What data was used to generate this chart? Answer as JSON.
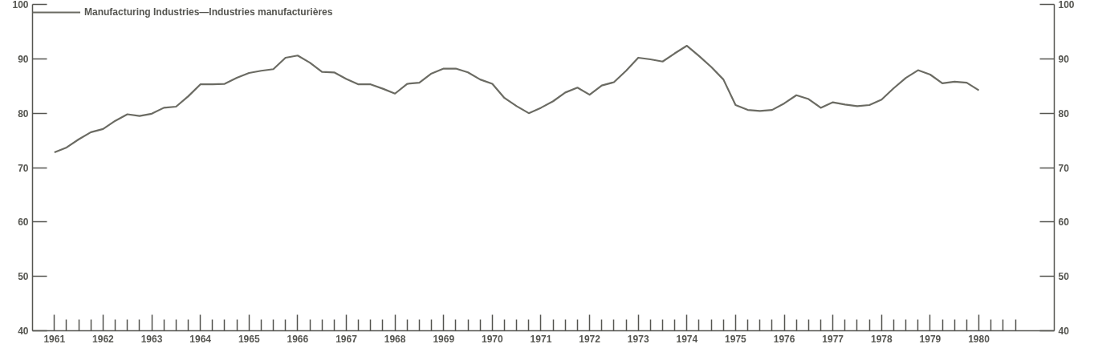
{
  "chart_data": {
    "type": "line",
    "legend": "top left",
    "grid": false,
    "marker": "none",
    "line_style": "solid",
    "x": [
      1961,
      1961.25,
      1961.5,
      1961.75,
      1962,
      1962.25,
      1962.5,
      1962.75,
      1963,
      1963.25,
      1963.5,
      1963.75,
      1964,
      1964.25,
      1964.5,
      1964.75,
      1965,
      1965.25,
      1965.5,
      1965.75,
      1966,
      1966.25,
      1966.5,
      1966.75,
      1967,
      1967.25,
      1967.5,
      1967.75,
      1968,
      1968.25,
      1968.5,
      1968.75,
      1969,
      1969.25,
      1969.5,
      1969.75,
      1970,
      1970.25,
      1970.5,
      1970.75,
      1971,
      1971.25,
      1971.5,
      1971.75,
      1972,
      1972.25,
      1972.5,
      1972.75,
      1973,
      1973.25,
      1973.5,
      1973.75,
      1974,
      1974.25,
      1974.5,
      1974.75,
      1975,
      1975.25,
      1975.5,
      1975.75,
      1976,
      1976.25,
      1976.5,
      1976.75,
      1977,
      1977.25,
      1977.5,
      1977.75,
      1978,
      1978.25,
      1978.5,
      1978.75,
      1979,
      1979.25,
      1979.5,
      1979.75,
      1980
    ],
    "series": [
      {
        "name": "Manufacturing Industries—Industries manufacturières",
        "color": "#6b6b63",
        "values": [
          72.8,
          73.7,
          75.2,
          76.5,
          77.1,
          78.6,
          79.8,
          79.5,
          79.9,
          81.0,
          81.2,
          83.1,
          85.3,
          85.3,
          85.4,
          86.5,
          87.4,
          87.8,
          88.1,
          90.2,
          90.6,
          89.3,
          87.6,
          87.5,
          86.3,
          85.3,
          85.3,
          84.5,
          83.6,
          85.4,
          85.6,
          87.3,
          88.2,
          88.2,
          87.5,
          86.2,
          85.4,
          82.8,
          81.3,
          80.0,
          81.0,
          82.2,
          83.8,
          84.7,
          83.4,
          85.1,
          85.7,
          87.8,
          90.2,
          89.9,
          89.5,
          91.0,
          92.4,
          90.5,
          88.5,
          86.2,
          81.5,
          80.6,
          80.4,
          80.6,
          81.8,
          83.3,
          82.6,
          81.0,
          82.0,
          81.6,
          81.3,
          81.5,
          82.5,
          84.6,
          86.5,
          87.9,
          87.1,
          85.5,
          85.8,
          85.6,
          84.2
        ]
      }
    ],
    "xlim": [
      1960.55,
      1981.55
    ],
    "xticks": [
      {
        "value": 1961,
        "label": "1961"
      },
      {
        "value": 1961.25,
        "label": null
      },
      {
        "value": 1961.5,
        "label": null
      },
      {
        "value": 1961.75,
        "label": null
      },
      {
        "value": 1962,
        "label": "1962"
      },
      {
        "value": 1962.25,
        "label": null
      },
      {
        "value": 1962.5,
        "label": null
      },
      {
        "value": 1962.75,
        "label": null
      },
      {
        "value": 1963,
        "label": "1963"
      },
      {
        "value": 1963.25,
        "label": null
      },
      {
        "value": 1963.5,
        "label": null
      },
      {
        "value": 1963.75,
        "label": null
      },
      {
        "value": 1964,
        "label": "1964"
      },
      {
        "value": 1964.25,
        "label": null
      },
      {
        "value": 1964.5,
        "label": null
      },
      {
        "value": 1964.75,
        "label": null
      },
      {
        "value": 1965,
        "label": "1965"
      },
      {
        "value": 1965.25,
        "label": null
      },
      {
        "value": 1965.5,
        "label": null
      },
      {
        "value": 1965.75,
        "label": null
      },
      {
        "value": 1966,
        "label": "1966"
      },
      {
        "value": 1966.25,
        "label": null
      },
      {
        "value": 1966.5,
        "label": null
      },
      {
        "value": 1966.75,
        "label": null
      },
      {
        "value": 1967,
        "label": "1967"
      },
      {
        "value": 1967.25,
        "label": null
      },
      {
        "value": 1967.5,
        "label": null
      },
      {
        "value": 1967.75,
        "label": null
      },
      {
        "value": 1968,
        "label": "1968"
      },
      {
        "value": 1968.25,
        "label": null
      },
      {
        "value": 1968.5,
        "label": null
      },
      {
        "value": 1968.75,
        "label": null
      },
      {
        "value": 1969,
        "label": "1969"
      },
      {
        "value": 1969.25,
        "label": null
      },
      {
        "value": 1969.5,
        "label": null
      },
      {
        "value": 1969.75,
        "label": null
      },
      {
        "value": 1970,
        "label": "1970"
      },
      {
        "value": 1970.25,
        "label": null
      },
      {
        "value": 1970.5,
        "label": null
      },
      {
        "value": 1970.75,
        "label": null
      },
      {
        "value": 1971,
        "label": "1971"
      },
      {
        "value": 1971.25,
        "label": null
      },
      {
        "value": 1971.5,
        "label": null
      },
      {
        "value": 1971.75,
        "label": null
      },
      {
        "value": 1972,
        "label": "1972"
      },
      {
        "value": 1972.25,
        "label": null
      },
      {
        "value": 1972.5,
        "label": null
      },
      {
        "value": 1972.75,
        "label": null
      },
      {
        "value": 1973,
        "label": "1973"
      },
      {
        "value": 1973.25,
        "label": null
      },
      {
        "value": 1973.5,
        "label": null
      },
      {
        "value": 1973.75,
        "label": null
      },
      {
        "value": 1974,
        "label": "1974"
      },
      {
        "value": 1974.25,
        "label": null
      },
      {
        "value": 1974.5,
        "label": null
      },
      {
        "value": 1974.75,
        "label": null
      },
      {
        "value": 1975,
        "label": "1975"
      },
      {
        "value": 1975.25,
        "label": null
      },
      {
        "value": 1975.5,
        "label": null
      },
      {
        "value": 1975.75,
        "label": null
      },
      {
        "value": 1976,
        "label": "1976"
      },
      {
        "value": 1976.25,
        "label": null
      },
      {
        "value": 1976.5,
        "label": null
      },
      {
        "value": 1976.75,
        "label": null
      },
      {
        "value": 1977,
        "label": "1977"
      },
      {
        "value": 1977.25,
        "label": null
      },
      {
        "value": 1977.5,
        "label": null
      },
      {
        "value": 1977.75,
        "label": null
      },
      {
        "value": 1978,
        "label": "1978"
      },
      {
        "value": 1978.25,
        "label": null
      },
      {
        "value": 1978.5,
        "label": null
      },
      {
        "value": 1978.75,
        "label": null
      },
      {
        "value": 1979,
        "label": "1979"
      },
      {
        "value": 1979.25,
        "label": null
      },
      {
        "value": 1979.5,
        "label": null
      },
      {
        "value": 1979.75,
        "label": null
      },
      {
        "value": 1980,
        "label": "1980"
      },
      {
        "value": 1980.25,
        "label": null
      },
      {
        "value": 1980.5,
        "label": null
      },
      {
        "value": 1980.75,
        "label": null
      }
    ],
    "ylim": [
      40,
      100
    ],
    "yticks": [
      40,
      50,
      60,
      70,
      80,
      90,
      100
    ],
    "y2lim": [
      40,
      100
    ],
    "y2ticks": [
      40,
      50,
      60,
      70,
      80,
      90,
      100
    ]
  }
}
